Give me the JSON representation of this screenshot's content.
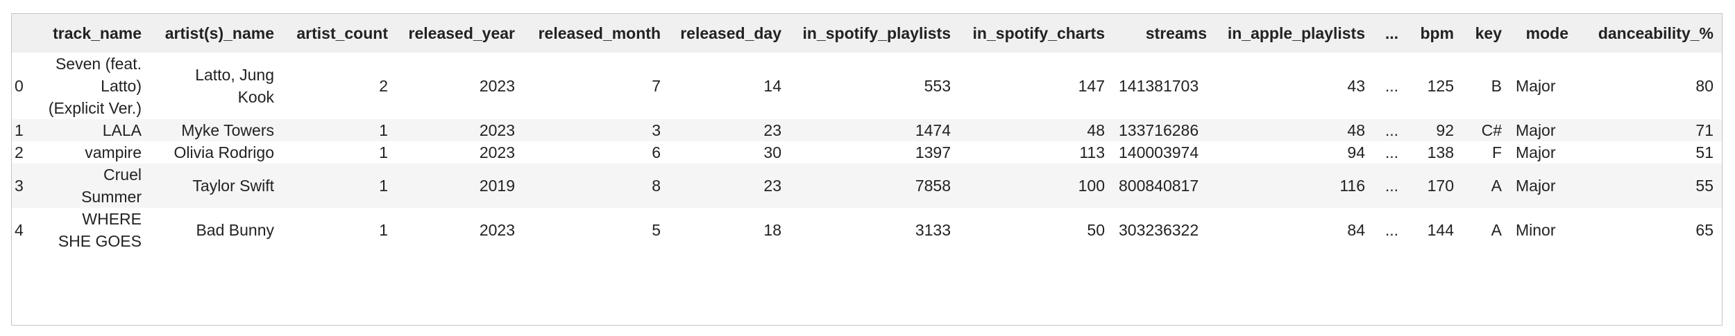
{
  "table": {
    "columns": [
      "track_name",
      "artist(s)_name",
      "artist_count",
      "released_year",
      "released_month",
      "released_day",
      "in_spotify_playlists",
      "in_spotify_charts",
      "streams",
      "in_apple_playlists",
      "...",
      "bpm",
      "key",
      "mode",
      "danceability_%"
    ],
    "rows": [
      {
        "index": 0,
        "cells": [
          "Seven (feat. Latto) (Explicit Ver.)",
          "Latto, Jung Kook",
          2,
          2023,
          7,
          14,
          553,
          147,
          "141381703",
          43,
          "...",
          125,
          "B",
          "Major",
          80
        ]
      },
      {
        "index": 1,
        "cells": [
          "LALA",
          "Myke Towers",
          1,
          2023,
          3,
          23,
          1474,
          48,
          "133716286",
          48,
          "...",
          92,
          "C#",
          "Major",
          71
        ]
      },
      {
        "index": 2,
        "cells": [
          "vampire",
          "Olivia Rodrigo",
          1,
          2023,
          6,
          30,
          1397,
          113,
          "140003974",
          94,
          "...",
          138,
          "F",
          "Major",
          51
        ]
      },
      {
        "index": 3,
        "cells": [
          "Cruel Summer",
          "Taylor Swift",
          1,
          2019,
          8,
          23,
          7858,
          100,
          "800840817",
          116,
          "...",
          170,
          "A",
          "Major",
          55
        ]
      },
      {
        "index": 4,
        "cells": [
          "WHERE SHE GOES",
          "Bad Bunny",
          1,
          2023,
          5,
          18,
          3133,
          50,
          "303236322",
          84,
          "...",
          144,
          "A",
          "Minor",
          65
        ]
      }
    ]
  }
}
